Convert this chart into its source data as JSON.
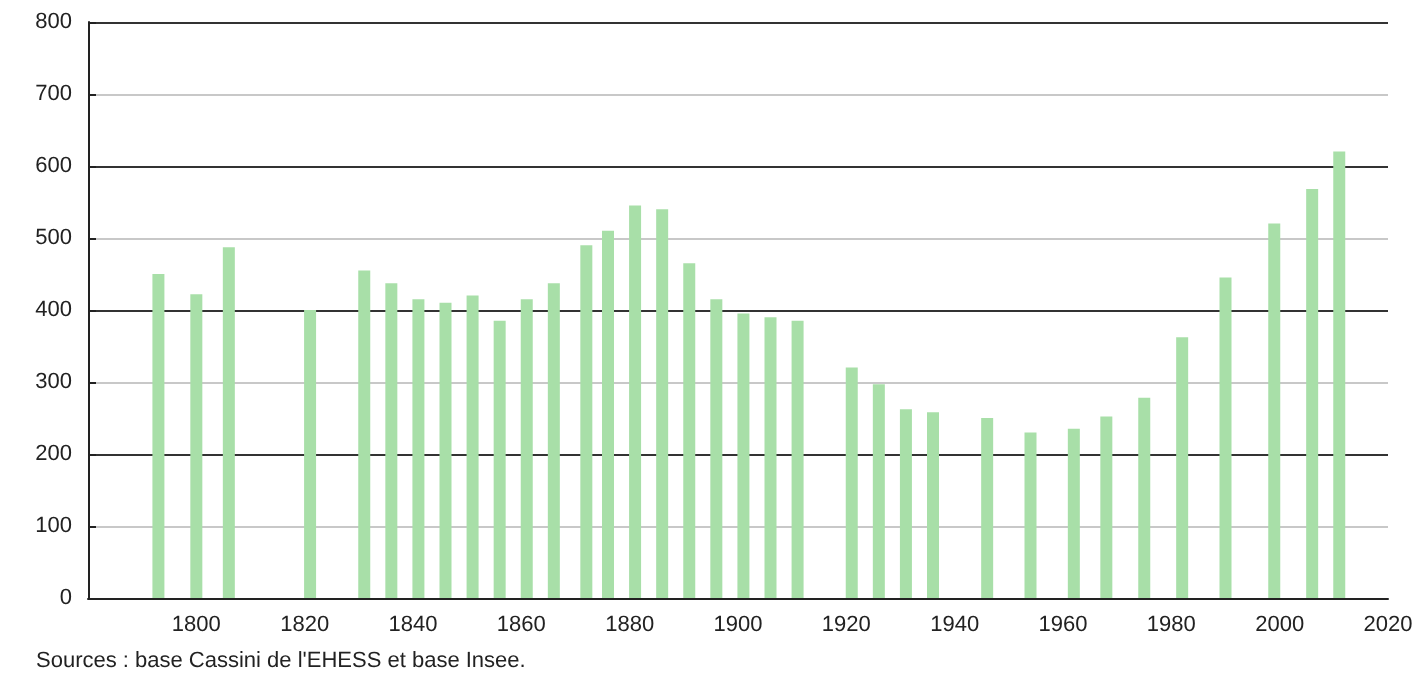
{
  "chart_data": {
    "type": "bar",
    "x": [
      1793,
      1800,
      1806,
      1821,
      1831,
      1836,
      1841,
      1846,
      1851,
      1856,
      1861,
      1866,
      1872,
      1876,
      1881,
      1886,
      1891,
      1896,
      1901,
      1906,
      1911,
      1921,
      1926,
      1931,
      1936,
      1946,
      1954,
      1962,
      1968,
      1975,
      1982,
      1990,
      1999,
      2006,
      2011
    ],
    "values": [
      450,
      422,
      487,
      400,
      455,
      437,
      415,
      410,
      420,
      385,
      415,
      437,
      490,
      510,
      545,
      540,
      465,
      415,
      395,
      390,
      385,
      320,
      297,
      262,
      258,
      250,
      230,
      235,
      252,
      278,
      362,
      445,
      520,
      568,
      620
    ],
    "color": "#a8dfa8",
    "xlim": [
      1780,
      2020
    ],
    "xticks": [
      1800,
      1820,
      1840,
      1860,
      1880,
      1900,
      1920,
      1940,
      1960,
      1980,
      2000,
      2020
    ],
    "ylim": [
      0,
      800
    ],
    "yticks": [
      0,
      100,
      200,
      300,
      400,
      500,
      600,
      700,
      800
    ],
    "grid": "y",
    "annotations": [
      "Sources : base Cassini de l'EHESS et base Insee."
    ]
  }
}
